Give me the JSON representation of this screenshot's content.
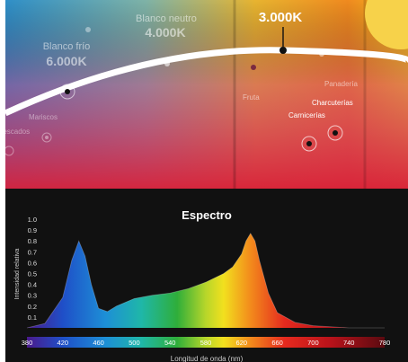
{
  "colors": {
    "cool": "#2f8fc8",
    "neutral": "#7fb3a7",
    "warm": "#e8b430",
    "hot": "#e0242f",
    "magenta": "#c9347c",
    "background": "#111111",
    "curve": "#ffffff"
  },
  "temperature_map": {
    "curve_labels": [
      {
        "title": "Blanco frío",
        "value": "6.000K"
      },
      {
        "title": "Blanco neutro",
        "value": "4.000K"
      },
      {
        "title": "",
        "value": "3.000K"
      }
    ],
    "applications": [
      "Mariscos",
      "Pescados",
      "Fruta",
      "Panadería",
      "Charcuterías",
      "Carnicerías"
    ]
  },
  "chart_data": {
    "type": "area",
    "title": "Espectro",
    "xlabel": "Longitud de onda (nm)",
    "ylabel": "Intensidad relativa",
    "xlim": [
      380,
      780
    ],
    "ylim": [
      0,
      1.0
    ],
    "x_ticks": [
      380,
      420,
      460,
      500,
      540,
      580,
      620,
      660,
      700,
      740,
      780
    ],
    "y_ticks": [
      0.1,
      0.2,
      0.3,
      0.4,
      0.5,
      0.6,
      0.7,
      0.8,
      0.9,
      1.0
    ],
    "tick_labels_y": [
      "0.1",
      "0.2",
      "0.3",
      "0.4",
      "0.5",
      "0.6",
      "0.7",
      "0.8",
      "0.9",
      "1.0"
    ],
    "grid": false,
    "series": [
      {
        "x": [
          380,
          400,
          420,
          430,
          438,
          445,
          452,
          460,
          470,
          480,
          500,
          520,
          540,
          560,
          580,
          600,
          610,
          620,
          625,
          630,
          635,
          640,
          650,
          660,
          680,
          700,
          740,
          780
        ],
        "values": [
          0.0,
          0.04,
          0.28,
          0.62,
          0.8,
          0.66,
          0.4,
          0.18,
          0.15,
          0.2,
          0.27,
          0.3,
          0.32,
          0.36,
          0.42,
          0.5,
          0.56,
          0.68,
          0.8,
          0.87,
          0.8,
          0.62,
          0.32,
          0.14,
          0.05,
          0.02,
          0.0,
          0.0
        ]
      }
    ]
  }
}
